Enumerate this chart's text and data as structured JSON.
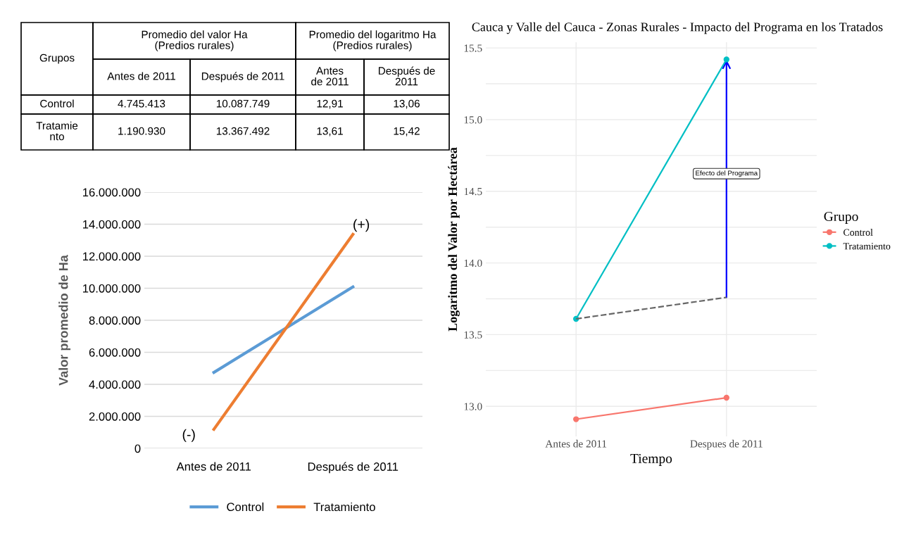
{
  "chart_data": [
    {
      "type": "other",
      "annotations": [
        "Grupos",
        "Promedio del valor Ha\n(Predios rurales)",
        "Promedio del logaritmo Ha\n(Predios rurales)",
        "Antes de 2011",
        "Después de 2011",
        "Antes\nde 2011",
        "Después de\n2011",
        "Control",
        "4.745.413",
        "10.087.749",
        "12,91",
        "13,06",
        "Tratamie\nnto",
        "1.190.930",
        "13.367.492",
        "13,61",
        "15,42"
      ]
    },
    {
      "type": "line",
      "categories": [
        "Antes de 2011",
        "Después de 2011"
      ],
      "ylabel": "Valor promedio de Ha",
      "series": [
        {
          "name": "Control",
          "color": "#5b9bd5",
          "values": [
            4745413,
            10087749
          ]
        },
        {
          "name": "Tratamiento",
          "color": "#ed7d31",
          "values": [
            1190930,
            13367492
          ]
        }
      ],
      "ylim": [
        0,
        16000000
      ],
      "yticks": [
        0,
        {
          "value": 2000000,
          "label": "2.000.000"
        },
        {
          "value": 4000000,
          "label": "4.000.000"
        },
        {
          "value": 6000000,
          "label": "6.000.000"
        },
        {
          "value": 8000000,
          "label": "8.000.000"
        },
        {
          "value": 10000000,
          "label": "10.000.000"
        },
        {
          "value": 12000000,
          "label": "12.000.000"
        },
        {
          "value": 14000000,
          "label": "14.000.000"
        },
        {
          "value": 16000000,
          "label": "16.000.000"
        }
      ],
      "annotations": [
        "(+)",
        "(-)"
      ],
      "grid": "y",
      "legend": "bottom",
      "line_style": "solid"
    },
    {
      "type": "line",
      "title": "Cauca y Valle del Cauca - Zonas Rurales - Impacto del Programa en los Tratados",
      "xlabel": "Tiempo",
      "ylabel": "Logaritmo del Valor por Hectárea",
      "legend_title": "Grupo",
      "categories": [
        "Antes de 2011",
        "Despues de 2011"
      ],
      "series": [
        {
          "name": "Control",
          "color": "#f8766d",
          "values": [
            12.91,
            13.06
          ]
        },
        {
          "name": "Tratamiento",
          "color": "#00bfc4",
          "values": [
            13.61,
            15.42
          ]
        },
        {
          "color": "#666666",
          "values": [
            13.61,
            13.76
          ],
          "line_style": "dashed",
          "marker": "none"
        }
      ],
      "ylim": [
        12.79,
        15.54
      ],
      "yticks": [
        {
          "value": 13.0,
          "label": "13.0"
        },
        {
          "value": 13.25,
          "label": null
        },
        {
          "value": 13.5,
          "label": "13.5"
        },
        {
          "value": 13.75,
          "label": null
        },
        {
          "value": 14.0,
          "label": "14.0"
        },
        {
          "value": 14.25,
          "label": null
        },
        {
          "value": 14.5,
          "label": "14.5"
        },
        {
          "value": 14.75,
          "label": null
        },
        {
          "value": 15.0,
          "label": "15.0"
        },
        {
          "value": 15.25,
          "label": null
        },
        {
          "value": 15.5,
          "label": "15.5"
        }
      ],
      "annotations": [
        "Efecto del Programa"
      ],
      "grid": true,
      "legend": "right",
      "marker": "circle",
      "line_style": "solid"
    }
  ]
}
